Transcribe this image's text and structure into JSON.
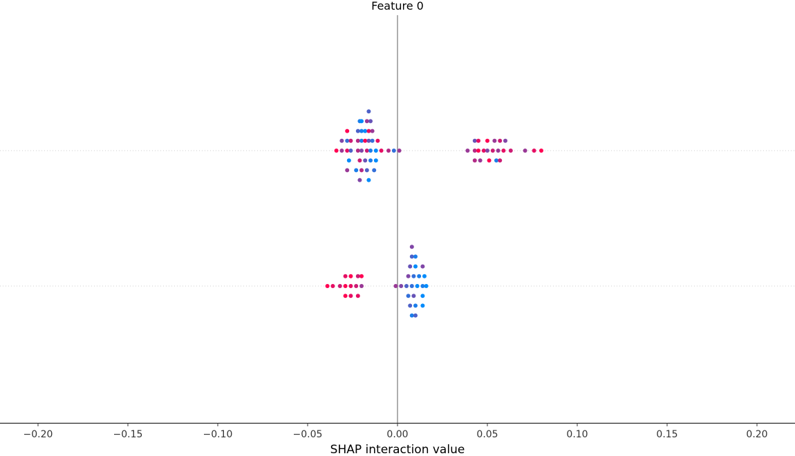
{
  "chart_data": {
    "type": "scatter",
    "title": "Feature 0",
    "xlabel": "SHAP interaction value",
    "ylabel": "",
    "xlim": [
      -0.22,
      0.22
    ],
    "x_ticks": [
      -0.2,
      -0.15,
      -0.1,
      -0.05,
      0.0,
      0.05,
      0.1,
      0.15,
      0.2
    ],
    "x_tick_labels": [
      "−0.20",
      "−0.15",
      "−0.10",
      "−0.05",
      "0.00",
      "0.05",
      "0.10",
      "0.15",
      "0.20"
    ],
    "grid": false,
    "legend": "none",
    "colors": {
      "low": "#008bfb",
      "high": "#ff0052",
      "zero_line": "#999999",
      "row_line": "#cccccc"
    },
    "rows": [
      {
        "points": [
          {
            "x": -0.016,
            "y": 4,
            "c": 0.3
          },
          {
            "x": -0.021,
            "y": 3,
            "c": 0.1
          },
          {
            "x": -0.02,
            "y": 3,
            "c": 0.0
          },
          {
            "x": -0.017,
            "y": 3,
            "c": 0.6
          },
          {
            "x": -0.015,
            "y": 3,
            "c": 0.4
          },
          {
            "x": -0.028,
            "y": 2,
            "c": 1.0
          },
          {
            "x": -0.022,
            "y": 2,
            "c": 0.3
          },
          {
            "x": -0.02,
            "y": 2,
            "c": 0.1
          },
          {
            "x": -0.018,
            "y": 2,
            "c": 0.0
          },
          {
            "x": -0.016,
            "y": 2,
            "c": 0.9
          },
          {
            "x": -0.014,
            "y": 2,
            "c": 0.6
          },
          {
            "x": -0.031,
            "y": 1,
            "c": 0.5
          },
          {
            "x": -0.028,
            "y": 1,
            "c": 0.2
          },
          {
            "x": -0.026,
            "y": 1,
            "c": 0.8
          },
          {
            "x": -0.022,
            "y": 1,
            "c": 0.7
          },
          {
            "x": -0.02,
            "y": 1,
            "c": 0.1
          },
          {
            "x": -0.018,
            "y": 1,
            "c": 1.0
          },
          {
            "x": -0.016,
            "y": 1,
            "c": 0.4
          },
          {
            "x": -0.014,
            "y": 1,
            "c": 0.2
          },
          {
            "x": -0.011,
            "y": 1,
            "c": 0.9
          },
          {
            "x": -0.034,
            "y": 0,
            "c": 1.0
          },
          {
            "x": -0.031,
            "y": 0,
            "c": 0.6
          },
          {
            "x": -0.028,
            "y": 0,
            "c": 0.9
          },
          {
            "x": -0.026,
            "y": 0,
            "c": 0.3
          },
          {
            "x": -0.022,
            "y": 0,
            "c": 0.7
          },
          {
            "x": -0.02,
            "y": 0,
            "c": 0.5
          },
          {
            "x": -0.017,
            "y": 0,
            "c": 0.8
          },
          {
            "x": -0.015,
            "y": 0,
            "c": 0.1
          },
          {
            "x": -0.012,
            "y": 0,
            "c": 0.0
          },
          {
            "x": -0.009,
            "y": 0,
            "c": 0.9
          },
          {
            "x": -0.005,
            "y": 0,
            "c": 0.7
          },
          {
            "x": -0.002,
            "y": 0,
            "c": 0.2
          },
          {
            "x": 0.001,
            "y": 0,
            "c": 0.6
          },
          {
            "x": -0.027,
            "y": -1,
            "c": 0.0
          },
          {
            "x": -0.021,
            "y": -1,
            "c": 0.8
          },
          {
            "x": -0.018,
            "y": -1,
            "c": 0.4
          },
          {
            "x": -0.015,
            "y": -1,
            "c": 0.1
          },
          {
            "x": -0.012,
            "y": -1,
            "c": 0.0
          },
          {
            "x": -0.028,
            "y": -2,
            "c": 0.6
          },
          {
            "x": -0.023,
            "y": -2,
            "c": 0.1
          },
          {
            "x": -0.02,
            "y": -2,
            "c": 0.7
          },
          {
            "x": -0.017,
            "y": -2,
            "c": 0.3
          },
          {
            "x": -0.013,
            "y": -2,
            "c": 0.2
          },
          {
            "x": -0.021,
            "y": -3,
            "c": 0.5
          },
          {
            "x": -0.016,
            "y": -3,
            "c": 0.0
          },
          {
            "x": 0.043,
            "y": 1,
            "c": 0.4
          },
          {
            "x": 0.045,
            "y": 1,
            "c": 0.9
          },
          {
            "x": 0.05,
            "y": 1,
            "c": 1.0
          },
          {
            "x": 0.054,
            "y": 1,
            "c": 0.6
          },
          {
            "x": 0.057,
            "y": 1,
            "c": 0.8
          },
          {
            "x": 0.06,
            "y": 1,
            "c": 0.5
          },
          {
            "x": 0.039,
            "y": 0,
            "c": 0.6
          },
          {
            "x": 0.043,
            "y": 0,
            "c": 0.7
          },
          {
            "x": 0.045,
            "y": 0,
            "c": 1.0
          },
          {
            "x": 0.048,
            "y": 0,
            "c": 0.9
          },
          {
            "x": 0.05,
            "y": 0,
            "c": 0.5
          },
          {
            "x": 0.053,
            "y": 0,
            "c": 0.8
          },
          {
            "x": 0.056,
            "y": 0,
            "c": 0.6
          },
          {
            "x": 0.059,
            "y": 0,
            "c": 0.9
          },
          {
            "x": 0.063,
            "y": 0,
            "c": 0.8
          },
          {
            "x": 0.071,
            "y": 0,
            "c": 0.6
          },
          {
            "x": 0.076,
            "y": 0,
            "c": 0.9
          },
          {
            "x": 0.08,
            "y": 0,
            "c": 1.0
          },
          {
            "x": 0.043,
            "y": -1,
            "c": 0.7
          },
          {
            "x": 0.046,
            "y": -1,
            "c": 0.6
          },
          {
            "x": 0.051,
            "y": -1,
            "c": 1.0
          },
          {
            "x": 0.055,
            "y": -1,
            "c": 0.1
          },
          {
            "x": 0.057,
            "y": -1,
            "c": 0.8
          }
        ]
      },
      {
        "points": [
          {
            "x": 0.008,
            "y": 4,
            "c": 0.5
          },
          {
            "x": 0.008,
            "y": 3,
            "c": 0.3
          },
          {
            "x": 0.01,
            "y": 3,
            "c": 0.1
          },
          {
            "x": 0.007,
            "y": 2,
            "c": 0.4
          },
          {
            "x": 0.01,
            "y": 2,
            "c": 0.0
          },
          {
            "x": 0.014,
            "y": 2,
            "c": 0.5
          },
          {
            "x": -0.029,
            "y": 1,
            "c": 0.9
          },
          {
            "x": -0.026,
            "y": 1,
            "c": 1.0
          },
          {
            "x": -0.022,
            "y": 1,
            "c": 0.8
          },
          {
            "x": -0.02,
            "y": 1,
            "c": 1.0
          },
          {
            "x": 0.006,
            "y": 1,
            "c": 0.5
          },
          {
            "x": 0.009,
            "y": 1,
            "c": 0.2
          },
          {
            "x": 0.012,
            "y": 1,
            "c": 0.1
          },
          {
            "x": 0.015,
            "y": 1,
            "c": 0.0
          },
          {
            "x": -0.039,
            "y": 0,
            "c": 1.0
          },
          {
            "x": -0.036,
            "y": 0,
            "c": 0.9
          },
          {
            "x": -0.032,
            "y": 0,
            "c": 0.8
          },
          {
            "x": -0.029,
            "y": 0,
            "c": 1.0
          },
          {
            "x": -0.026,
            "y": 0,
            "c": 0.9
          },
          {
            "x": -0.023,
            "y": 0,
            "c": 0.8
          },
          {
            "x": -0.02,
            "y": 0,
            "c": 0.6
          },
          {
            "x": -0.001,
            "y": 0,
            "c": 0.6
          },
          {
            "x": 0.002,
            "y": 0,
            "c": 0.5
          },
          {
            "x": 0.005,
            "y": 0,
            "c": 0.3
          },
          {
            "x": 0.008,
            "y": 0,
            "c": 0.2
          },
          {
            "x": 0.011,
            "y": 0,
            "c": 0.0
          },
          {
            "x": 0.014,
            "y": 0,
            "c": 0.1
          },
          {
            "x": 0.016,
            "y": 0,
            "c": 0.0
          },
          {
            "x": -0.029,
            "y": -1,
            "c": 1.0
          },
          {
            "x": -0.026,
            "y": -1,
            "c": 0.9
          },
          {
            "x": -0.022,
            "y": -1,
            "c": 0.9
          },
          {
            "x": 0.006,
            "y": -1,
            "c": 0.2
          },
          {
            "x": 0.009,
            "y": -1,
            "c": 0.4
          },
          {
            "x": 0.014,
            "y": -1,
            "c": 0.0
          },
          {
            "x": 0.007,
            "y": -2,
            "c": 0.3
          },
          {
            "x": 0.01,
            "y": -2,
            "c": 0.1
          },
          {
            "x": 0.014,
            "y": -2,
            "c": 0.0
          },
          {
            "x": 0.008,
            "y": -3,
            "c": 0.1
          },
          {
            "x": 0.01,
            "y": -3,
            "c": 0.3
          }
        ]
      }
    ]
  }
}
